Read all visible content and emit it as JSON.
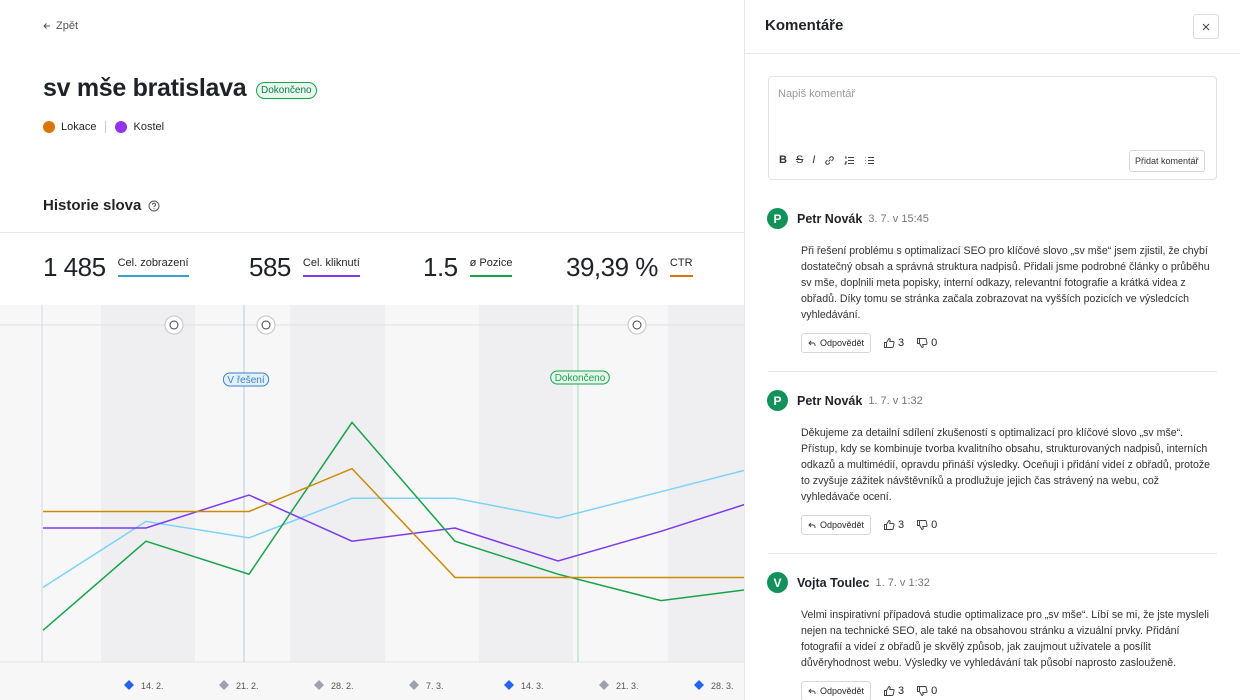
{
  "back": "Zpět",
  "title": "sv mše bratislava",
  "status": "Dokončeno",
  "tags": [
    {
      "label": "Lokace",
      "color": "#d97706"
    },
    {
      "label": "Kostel",
      "color": "#9333ea"
    }
  ],
  "section_title": "Historie slova",
  "metrics": [
    {
      "value": "1 485",
      "label": "Cel. zobrazení",
      "color": "#3b9fd1"
    },
    {
      "value": "585",
      "label": "Cel. kliknutí",
      "color": "#7c3aed"
    },
    {
      "value": "1.5",
      "label": "ø Pozice",
      "color": "#16a34a"
    },
    {
      "value": "39,39 %",
      "label": "CTR",
      "color": "#d97706"
    }
  ],
  "chart_data": {
    "type": "line",
    "ylim": [
      0,
      100
    ],
    "series": [
      {
        "color": "#7dd3fc",
        "values": [
          22,
          42,
          37,
          49,
          49,
          43,
          51,
          59
        ]
      },
      {
        "color": "#7c3aed",
        "values": [
          40,
          40,
          50,
          36,
          40,
          30,
          39,
          49
        ]
      },
      {
        "color": "#16a34a",
        "values": [
          9,
          36,
          26,
          72,
          36,
          26,
          18,
          22
        ]
      },
      {
        "color": "#ca8a04",
        "values": [
          45,
          45,
          45,
          58,
          25,
          25,
          25,
          25
        ]
      }
    ],
    "x_labels": [
      {
        "label": "14. 2.",
        "color": "#2563eb"
      },
      {
        "label": "21. 2.",
        "color": "#9ca3af"
      },
      {
        "label": "28. 2.",
        "color": "#9ca3af"
      },
      {
        "label": "7. 3.",
        "color": "#9ca3af"
      },
      {
        "label": "14. 3.",
        "color": "#2563eb"
      },
      {
        "label": "21. 3.",
        "color": "#9ca3af"
      },
      {
        "label": "28. 3.",
        "color": "#2563eb"
      }
    ],
    "phases": [
      {
        "label": "V řešení",
        "color": "#3b82c4"
      },
      {
        "label": "Dokončeno",
        "color": "#16a34a"
      }
    ]
  },
  "comments_panel": {
    "title": "Komentáře",
    "placeholder": "Napiš komentář",
    "format_buttons": [
      "B",
      "S",
      "I"
    ],
    "submit": "Přidat komentář",
    "reply": "Odpovědět",
    "comments": [
      {
        "initial": "P",
        "author": "Petr Novák",
        "date": "3. 7. v 15:45",
        "text": "Při řešení problému s optimalizací SEO pro klíčové slovo „sv mše“ jsem zjistil, že chybí dostatečný obsah a správná struktura nadpisů. Přidali jsme podrobné články o průběhu sv mše, doplnili meta popisky, interní odkazy, relevantní fotografie a krátká videa z obřadů. Díky tomu se stránka začala zobrazovat na vyšších pozicích ve výsledcích vyhledávání.",
        "likes": 3,
        "dislikes": 0
      },
      {
        "initial": "P",
        "author": "Petr Novák",
        "date": "1. 7. v 1:32",
        "text": "Děkujeme za detailní sdílení zkušeností s optimalizací pro klíčové slovo „sv mše“. Přístup, kdy se kombinuje tvorba kvalitního obsahu, strukturovaných nadpisů, interních odkazů a multimédií, opravdu přináší výsledky. Oceňuji i přidání videí z obřadů, protože to zvyšuje zážitek návštěvníků a prodlužuje jejich čas strávený na webu, což vyhledávače ocení.",
        "likes": 3,
        "dislikes": 0
      },
      {
        "initial": "V",
        "author": "Vojta Toulec",
        "date": "1. 7. v 1:32",
        "text": "Velmi inspirativní případová studie optimalizace pro „sv mše“. Líbí se mi, že jste mysleli nejen na technické SEO, ale také na obsahovou stránku a vizuální prvky. Přidání fotografií a videí z obřadů je skvělý způsob, jak zaujmout uživatele a posílit důvěryhodnost webu. Výsledky ve vyhledávání tak působí naprosto zaslouženě.",
        "likes": 3,
        "dislikes": 0
      }
    ]
  }
}
